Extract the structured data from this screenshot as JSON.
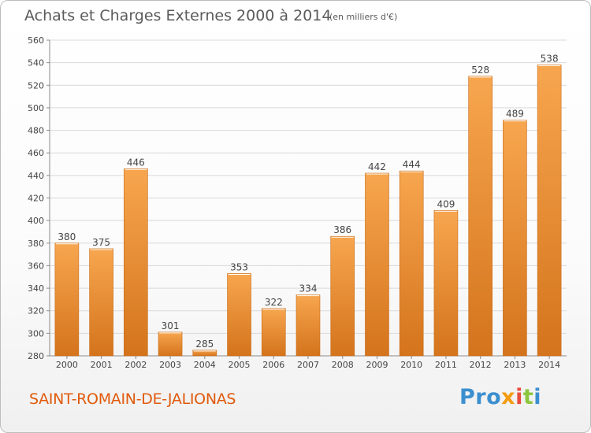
{
  "header": {
    "title": "Achats et Charges Externes 2000 à 2014",
    "subtitle": "(en milliers d'€)"
  },
  "footer": {
    "commune": "SAINT-ROMAIN-DE-JALIONAS",
    "logo": {
      "p1": "Pro",
      "p2": "x",
      "p3": "i",
      "p4": "t",
      "p5": "i"
    }
  },
  "colors": {
    "bar_light": "#f7a64f",
    "bar_dark": "#d4741c",
    "grid": "#d9d9d9",
    "axis_text": "#444444",
    "commune": "#e05a0c"
  },
  "chart_data": {
    "type": "bar",
    "categories": [
      "2000",
      "2001",
      "2002",
      "2003",
      "2004",
      "2005",
      "2006",
      "2007",
      "2008",
      "2009",
      "2010",
      "2011",
      "2012",
      "2013",
      "2014"
    ],
    "values": [
      380,
      375,
      446,
      301,
      285,
      353,
      322,
      334,
      386,
      442,
      444,
      409,
      528,
      489,
      538
    ],
    "data_labels": [
      "380",
      "375",
      "446",
      "301",
      "285",
      "353",
      "322",
      "334",
      "386",
      "442",
      "444",
      "409",
      "528",
      "489",
      "538"
    ],
    "ylim": [
      280,
      560
    ],
    "yticks": [
      280,
      300,
      320,
      340,
      360,
      380,
      400,
      420,
      440,
      460,
      480,
      500,
      520,
      540,
      560
    ],
    "ytick_labels": [
      "280",
      "300",
      "320",
      "340",
      "360",
      "380",
      "400",
      "420",
      "440",
      "460",
      "480",
      "500",
      "520",
      "540",
      "560"
    ],
    "grid": true
  }
}
